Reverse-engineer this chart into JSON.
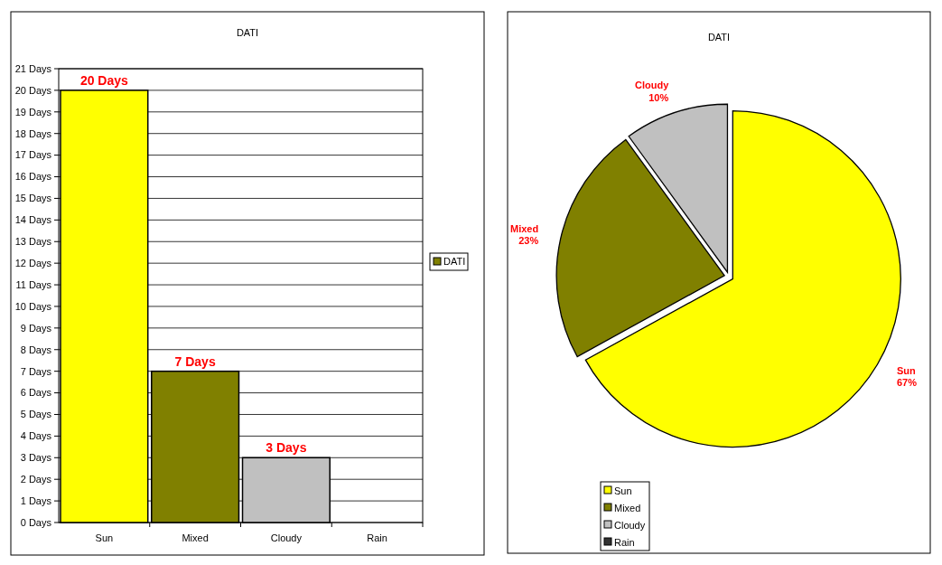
{
  "chart_data": [
    {
      "type": "bar",
      "title": "DATI",
      "categories": [
        "Sun",
        "Mixed",
        "Cloudy",
        "Rain"
      ],
      "series": [
        {
          "name": "DATI",
          "color": "#808000",
          "colors": [
            "#ffff00",
            "#808000",
            "#c0c0c0",
            "#333333"
          ],
          "values": [
            20,
            7,
            3,
            0
          ],
          "value_labels": [
            "20 Days",
            "7 Days",
            "3 Days",
            null
          ]
        }
      ],
      "ylim": [
        0,
        21
      ],
      "yticks": [
        {
          "value": 0,
          "label": "0 Days"
        },
        {
          "value": 1,
          "label": "1 Days"
        },
        {
          "value": 2,
          "label": "2 Days"
        },
        {
          "value": 3,
          "label": "3 Days"
        },
        {
          "value": 4,
          "label": "4 Days"
        },
        {
          "value": 5,
          "label": "5 Days"
        },
        {
          "value": 6,
          "label": "6 Days"
        },
        {
          "value": 7,
          "label": "7 Days"
        },
        {
          "value": 8,
          "label": "8 Days"
        },
        {
          "value": 9,
          "label": "9 Days"
        },
        {
          "value": 10,
          "label": "10 Days"
        },
        {
          "value": 11,
          "label": "11 Days"
        },
        {
          "value": 12,
          "label": "12 Days"
        },
        {
          "value": 13,
          "label": "13 Days"
        },
        {
          "value": 14,
          "label": "14 Days"
        },
        {
          "value": 15,
          "label": "15 Days"
        },
        {
          "value": 16,
          "label": "16 Days"
        },
        {
          "value": 17,
          "label": "17 Days"
        },
        {
          "value": 18,
          "label": "18 Days"
        },
        {
          "value": 19,
          "label": "19 Days"
        },
        {
          "value": 20,
          "label": "20 Days"
        },
        {
          "value": 21,
          "label": "21 Days"
        }
      ],
      "grid": "y",
      "legend": "right"
    },
    {
      "type": "pie",
      "title": "DATI",
      "categories": [
        "Sun",
        "Mixed",
        "Cloudy",
        "Rain"
      ],
      "values": [
        67,
        23,
        10,
        0
      ],
      "colors": [
        "#ffff00",
        "#808000",
        "#c0c0c0",
        "#333333"
      ],
      "value_labels": [
        "67%",
        "23%",
        "10%",
        null
      ],
      "legend": "bottom left"
    }
  ]
}
